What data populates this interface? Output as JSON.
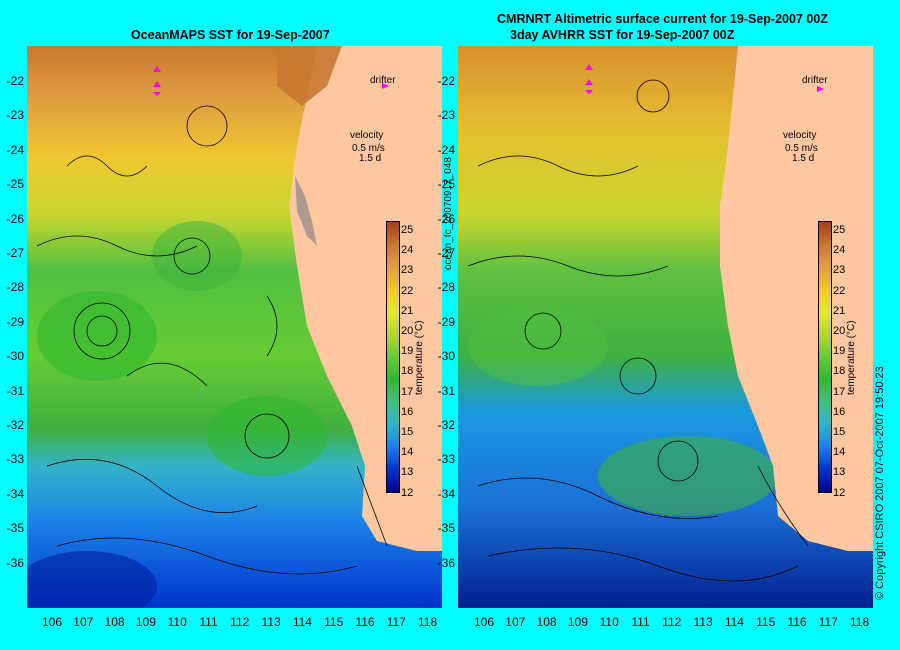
{
  "titles": {
    "left": "OceanMAPS SST for 19-Sep-2007",
    "right_line1": "CMRNRT Altimetric surface current for 19-Sep-2007 00Z",
    "right_line2": "3day AVHRR SST for 19-Sep-2007 00Z"
  },
  "side_labels": {
    "left_map_id": "ocean_fc_20070917_048",
    "copyright": "© Copyright CSIRO 2007   07-Oct-2007 19:50:23"
  },
  "legend": {
    "drifter": "drifter",
    "velocity": "velocity",
    "velocity_scale": "0.5 m/s",
    "velocity_time": "1.5 d",
    "colorbar_title": "temperature (°C)",
    "colorbar_ticks": [
      "25",
      "24",
      "23",
      "22",
      "21",
      "20",
      "19",
      "18",
      "17",
      "16",
      "15",
      "14",
      "13",
      "12"
    ]
  },
  "axes": {
    "lat_ticks": [
      "-22",
      "-23",
      "-24",
      "-25",
      "-26",
      "-27",
      "-28",
      "-29",
      "-30",
      "-31",
      "-32",
      "-33",
      "-34",
      "-35",
      "-36"
    ],
    "lon_ticks": [
      "106",
      "107",
      "108",
      "109",
      "110",
      "111",
      "112",
      "113",
      "114",
      "115",
      "116",
      "117",
      "118"
    ]
  },
  "colors": {
    "background": "#00ffff",
    "land": "#ffc8a0",
    "drifter_arrow": "#ff00ff",
    "colormap": [
      "#00008c",
      "#0033cc",
      "#1a80e6",
      "#33b3cc",
      "#40c080",
      "#2eb82e",
      "#66cc33",
      "#b3d633",
      "#e6e633",
      "#f0c830",
      "#e0a040",
      "#c87830",
      "#a0401a"
    ]
  }
}
